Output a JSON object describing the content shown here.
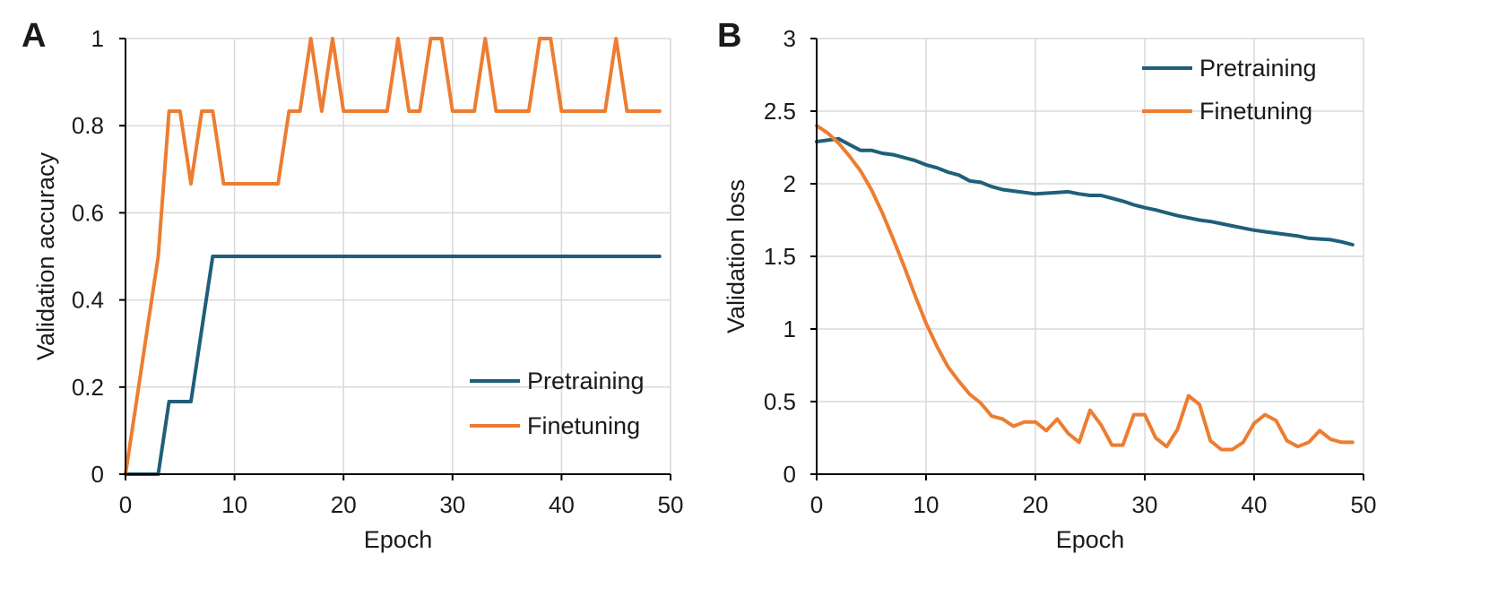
{
  "chart_data": [
    {
      "panel_label": "A",
      "type": "line",
      "xlabel": "Epoch",
      "ylabel": "Validation accuracy",
      "xlim": [
        0,
        50
      ],
      "ylim": [
        0,
        1
      ],
      "xticks": [
        0,
        10,
        20,
        30,
        40,
        50
      ],
      "yticks": [
        0,
        0.2,
        0.4,
        0.6,
        0.8,
        1
      ],
      "ytick_labels": [
        "0",
        "0.2",
        "0.4",
        "0.6",
        "0.8",
        "1"
      ],
      "legend": "bottom-right",
      "grid": true,
      "series": [
        {
          "name": "Pretraining",
          "color": "#1f5f7a",
          "x": [
            0,
            1,
            2,
            3,
            4,
            5,
            6,
            7,
            8,
            9,
            10,
            11,
            12,
            13,
            14,
            15,
            16,
            17,
            18,
            19,
            20,
            21,
            22,
            23,
            24,
            25,
            26,
            27,
            28,
            29,
            30,
            31,
            32,
            33,
            34,
            35,
            36,
            37,
            38,
            39,
            40,
            41,
            42,
            43,
            44,
            45,
            46,
            47,
            48,
            49
          ],
          "y": [
            0,
            0,
            0,
            0,
            0.1667,
            0.1667,
            0.1667,
            0.3333,
            0.5,
            0.5,
            0.5,
            0.5,
            0.5,
            0.5,
            0.5,
            0.5,
            0.5,
            0.5,
            0.5,
            0.5,
            0.5,
            0.5,
            0.5,
            0.5,
            0.5,
            0.5,
            0.5,
            0.5,
            0.5,
            0.5,
            0.5,
            0.5,
            0.5,
            0.5,
            0.5,
            0.5,
            0.5,
            0.5,
            0.5,
            0.5,
            0.5,
            0.5,
            0.5,
            0.5,
            0.5,
            0.5,
            0.5,
            0.5,
            0.5,
            0.5
          ]
        },
        {
          "name": "Finetuning",
          "color": "#ed7d31",
          "x": [
            0,
            1,
            2,
            3,
            4,
            5,
            6,
            7,
            8,
            9,
            10,
            11,
            12,
            13,
            14,
            15,
            16,
            17,
            18,
            19,
            20,
            21,
            22,
            23,
            24,
            25,
            26,
            27,
            28,
            29,
            30,
            31,
            32,
            33,
            34,
            35,
            36,
            37,
            38,
            39,
            40,
            41,
            42,
            43,
            44,
            45,
            46,
            47,
            48,
            49
          ],
          "y": [
            0,
            0.1667,
            0.3333,
            0.5,
            0.8333,
            0.8333,
            0.6667,
            0.8333,
            0.8333,
            0.6667,
            0.6667,
            0.6667,
            0.6667,
            0.6667,
            0.6667,
            0.8333,
            0.8333,
            1,
            0.8333,
            1,
            0.8333,
            0.8333,
            0.8333,
            0.8333,
            0.8333,
            1,
            0.8333,
            0.8333,
            1,
            1,
            0.8333,
            0.8333,
            0.8333,
            1,
            0.8333,
            0.8333,
            0.8333,
            0.8333,
            1,
            1,
            0.8333,
            0.8333,
            0.8333,
            0.8333,
            0.8333,
            1,
            0.8333,
            0.8333,
            0.8333,
            0.8333
          ]
        }
      ]
    },
    {
      "panel_label": "B",
      "type": "line",
      "xlabel": "Epoch",
      "ylabel": "Validation loss",
      "xlim": [
        0,
        50
      ],
      "ylim": [
        0,
        3
      ],
      "xticks": [
        0,
        10,
        20,
        30,
        40,
        50
      ],
      "yticks": [
        0,
        0.5,
        1,
        1.5,
        2,
        2.5,
        3
      ],
      "ytick_labels": [
        "0",
        "0.5",
        "1",
        "1.5",
        "2",
        "2.5",
        "3"
      ],
      "legend": "top-right",
      "grid": true,
      "series": [
        {
          "name": "Pretraining",
          "color": "#1f5f7a",
          "x": [
            0,
            1,
            2,
            3,
            4,
            5,
            6,
            7,
            8,
            9,
            10,
            11,
            12,
            13,
            14,
            15,
            16,
            17,
            18,
            19,
            20,
            21,
            22,
            23,
            24,
            25,
            26,
            27,
            28,
            29,
            30,
            31,
            32,
            33,
            34,
            35,
            36,
            37,
            38,
            39,
            40,
            41,
            42,
            43,
            44,
            45,
            46,
            47,
            48,
            49
          ],
          "y": [
            2.29,
            2.3,
            2.31,
            2.27,
            2.23,
            2.23,
            2.21,
            2.2,
            2.18,
            2.16,
            2.13,
            2.11,
            2.08,
            2.06,
            2.02,
            2.01,
            1.98,
            1.96,
            1.95,
            1.94,
            1.93,
            1.935,
            1.94,
            1.945,
            1.93,
            1.92,
            1.92,
            1.9,
            1.88,
            1.855,
            1.835,
            1.82,
            1.8,
            1.78,
            1.765,
            1.75,
            1.74,
            1.725,
            1.71,
            1.695,
            1.68,
            1.67,
            1.66,
            1.65,
            1.64,
            1.625,
            1.62,
            1.615,
            1.6,
            1.58
          ]
        },
        {
          "name": "Finetuning",
          "color": "#ed7d31",
          "x": [
            0,
            1,
            2,
            3,
            4,
            5,
            6,
            7,
            8,
            9,
            10,
            11,
            12,
            13,
            14,
            15,
            16,
            17,
            18,
            19,
            20,
            21,
            22,
            23,
            24,
            25,
            26,
            27,
            28,
            29,
            30,
            31,
            32,
            33,
            34,
            35,
            36,
            37,
            38,
            39,
            40,
            41,
            42,
            43,
            44,
            45,
            46,
            47,
            48,
            49
          ],
          "y": [
            2.4,
            2.35,
            2.28,
            2.19,
            2.09,
            1.96,
            1.8,
            1.62,
            1.43,
            1.23,
            1.04,
            0.88,
            0.74,
            0.64,
            0.55,
            0.49,
            0.4,
            0.38,
            0.33,
            0.36,
            0.36,
            0.3,
            0.38,
            0.28,
            0.22,
            0.44,
            0.34,
            0.2,
            0.2,
            0.41,
            0.41,
            0.25,
            0.19,
            0.31,
            0.54,
            0.48,
            0.23,
            0.17,
            0.17,
            0.22,
            0.35,
            0.41,
            0.37,
            0.23,
            0.19,
            0.22,
            0.3,
            0.24,
            0.22,
            0.22
          ]
        }
      ]
    }
  ]
}
